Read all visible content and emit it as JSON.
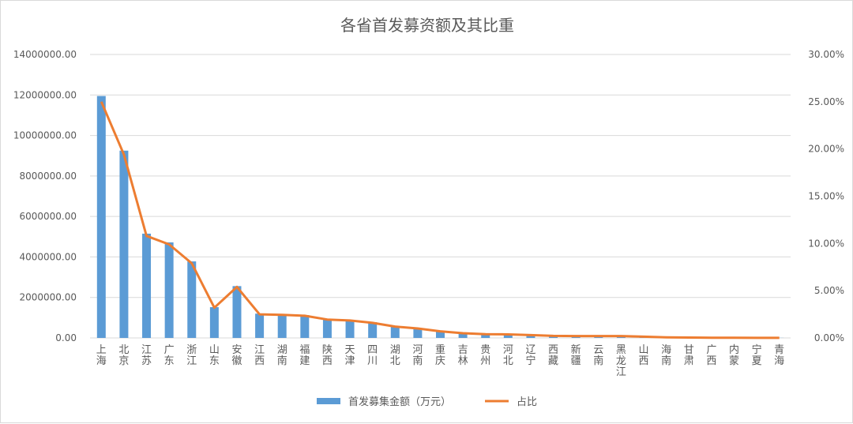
{
  "chart_data": {
    "type": "bar",
    "title": "各省首发募资额及其比重",
    "categories": [
      "上海",
      "北京",
      "江苏",
      "广东",
      "浙江",
      "山东",
      "安徽",
      "江西",
      "湖南",
      "福建",
      "陕西",
      "天津",
      "四川",
      "湖北",
      "河南",
      "重庆",
      "吉林",
      "贵州",
      "河北",
      "辽宁",
      "西藏",
      "新疆",
      "云南",
      "黑龙江",
      "山西",
      "海南",
      "甘肃",
      "广西",
      "内蒙",
      "宁夏",
      "青海"
    ],
    "series": [
      {
        "name": "首发募集金额（万元）",
        "type": "bar",
        "axis": "left",
        "color": "#5b9bd5",
        "values": [
          11950000,
          9250000,
          5150000,
          4720000,
          3780000,
          1520000,
          2560000,
          1200000,
          1170000,
          1130000,
          930000,
          880000,
          780000,
          580000,
          480000,
          320000,
          230000,
          190000,
          180000,
          140000,
          100000,
          100000,
          100000,
          100000,
          60000,
          30000,
          20000,
          10000,
          10000,
          5000,
          5000
        ]
      },
      {
        "name": "占比",
        "type": "line",
        "axis": "right",
        "color": "#ed7d31",
        "values": [
          25.0,
          19.4,
          10.8,
          9.9,
          7.9,
          3.2,
          5.4,
          2.5,
          2.45,
          2.35,
          1.95,
          1.85,
          1.6,
          1.2,
          1.0,
          0.7,
          0.5,
          0.4,
          0.38,
          0.3,
          0.22,
          0.2,
          0.2,
          0.2,
          0.13,
          0.07,
          0.04,
          0.02,
          0.02,
          0.01,
          0.01
        ]
      }
    ],
    "y_left": {
      "min": 0,
      "max": 14000000,
      "step": 2000000,
      "tick_labels": [
        "0.00",
        "2000000.00",
        "4000000.00",
        "6000000.00",
        "8000000.00",
        "10000000.00",
        "12000000.00",
        "14000000.00"
      ]
    },
    "y_right": {
      "min": 0,
      "max": 30,
      "step": 5,
      "tick_labels": [
        "0.00%",
        "5.00%",
        "10.00%",
        "15.00%",
        "20.00%",
        "25.00%",
        "30.00%"
      ]
    },
    "grid": true,
    "legend_position": "bottom"
  }
}
